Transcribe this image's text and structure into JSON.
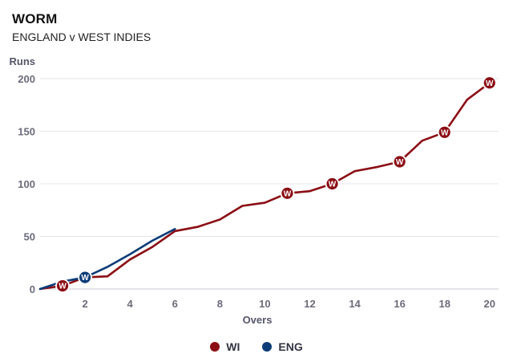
{
  "header": {
    "title": "WORM",
    "subtitle": "ENGLAND v WEST INDIES"
  },
  "chart_data": {
    "type": "line",
    "title": "WORM",
    "subtitle": "ENGLAND v WEST INDIES",
    "xlabel": "Overs",
    "ylabel": "Runs",
    "xlim": [
      0,
      20.4
    ],
    "ylim": [
      0,
      200
    ],
    "xticks": [
      2,
      4,
      6,
      8,
      10,
      12,
      14,
      16,
      18,
      20
    ],
    "yticks": [
      0,
      50,
      100,
      150,
      200
    ],
    "grid": "horizontal",
    "legend_position": "bottom-center",
    "wicket_marker_label": "W",
    "series": [
      {
        "name": "WI",
        "color": "#8b0d14",
        "x": [
          0,
          1,
          2,
          3,
          4,
          5,
          6,
          7,
          8,
          9,
          10,
          11,
          12,
          13,
          14,
          15,
          16,
          17,
          18,
          19,
          20
        ],
        "values": [
          0,
          3,
          11,
          12,
          28,
          40,
          55,
          59,
          66,
          79,
          82,
          91,
          93,
          100,
          112,
          116,
          121,
          141,
          149,
          180,
          196
        ],
        "wickets": [
          1,
          11,
          13,
          16,
          18,
          20
        ]
      },
      {
        "name": "ENG",
        "color": "#0c3c78",
        "x": [
          0,
          1,
          2,
          3,
          4,
          5,
          6
        ],
        "values": [
          0,
          7,
          11,
          21,
          33,
          46,
          57
        ],
        "wickets": [
          2
        ]
      }
    ]
  }
}
